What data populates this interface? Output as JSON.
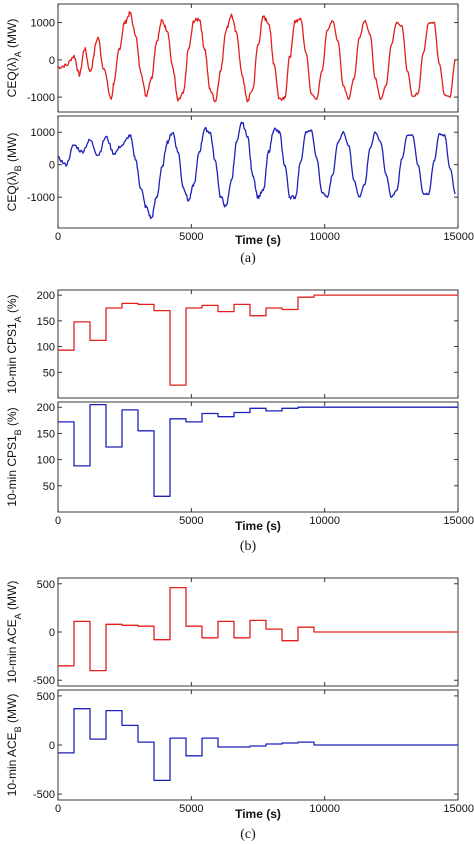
{
  "chart_data": [
    {
      "panel": "(a)",
      "type": "line",
      "xlim": [
        0,
        15000
      ],
      "xticks": [
        0,
        5000,
        10000,
        15000
      ],
      "xlabel": "Time (s)",
      "plots": [
        {
          "ylabel": "CEQ(λ)",
          "ylabel_sub": "A",
          "ylabel_unit": " (MW)",
          "ylim": [
            -1400,
            1500
          ],
          "yticks": [
            -1000,
            0,
            1000
          ],
          "series": [
            {
              "color": "#e0201c",
              "pattern": "noisy oscillation; amplitude grows then settles to a regular sinusoid",
              "x": [
                0,
                300,
                600,
                800,
                1000,
                1200,
                1500,
                1700,
                2000,
                2100,
                2300,
                2500,
                2700,
                2900,
                3100,
                3300,
                3500,
                3700,
                3900,
                4100,
                4300,
                4500,
                4700,
                4900,
                5100,
                5300,
                5500,
                5700,
                5900,
                6100,
                6300,
                6500,
                6700,
                6900,
                7100,
                7300,
                7500,
                7700,
                7900,
                8100,
                8300,
                8500,
                8700,
                8900,
                9100,
                9300,
                9500,
                9700,
                9900,
                10100,
                10300,
                10500,
                10700,
                10900,
                11100,
                11300,
                11500,
                11700,
                11900,
                12100,
                12300,
                12500,
                12700,
                12900,
                13100,
                13300,
                13500,
                13700,
                13900,
                14100,
                14300,
                14500,
                14700,
                14900
              ],
              "y": [
                -200,
                -150,
                100,
                -400,
                300,
                -300,
                600,
                -200,
                -1050,
                -600,
                300,
                1000,
                1250,
                700,
                -300,
                -950,
                -500,
                500,
                1050,
                800,
                -200,
                -1100,
                -900,
                300,
                1050,
                1100,
                300,
                -800,
                -1100,
                -300,
                800,
                1200,
                700,
                -400,
                -1100,
                -800,
                400,
                1150,
                1000,
                -100,
                -1050,
                -1000,
                100,
                1050,
                1100,
                200,
                -900,
                -1050,
                -300,
                800,
                1050,
                500,
                -700,
                -1050,
                -500,
                600,
                1050,
                700,
                -500,
                -1050,
                -700,
                400,
                1000,
                900,
                -300,
                -1000,
                -900,
                200,
                1000,
                1000,
                -100,
                -950,
                -1000,
                0
              ]
            }
          ]
        },
        {
          "ylabel": "CEQ(λ)",
          "ylabel_sub": "B",
          "ylabel_unit": " (MW)",
          "ylim": [
            -1950,
            1500
          ],
          "yticks": [
            -1000,
            0,
            1000
          ],
          "series": [
            {
              "color": "#1c22b8",
              "pattern": "noisy oscillation; deep trough near 3500 s then regular sinusoid",
              "x": [
                0,
                300,
                600,
                900,
                1200,
                1500,
                1800,
                2100,
                2400,
                2700,
                2900,
                3100,
                3300,
                3500,
                3700,
                3900,
                4100,
                4300,
                4500,
                4700,
                4900,
                5100,
                5300,
                5500,
                5700,
                5900,
                6100,
                6300,
                6500,
                6700,
                6900,
                7100,
                7300,
                7500,
                7700,
                7900,
                8100,
                8300,
                8500,
                8700,
                8900,
                9100,
                9300,
                9500,
                9700,
                9900,
                10100,
                10300,
                10500,
                10700,
                10900,
                11100,
                11300,
                11500,
                11700,
                11900,
                12100,
                12300,
                12500,
                12700,
                12900,
                13100,
                13300,
                13500,
                13700,
                13900,
                14100,
                14300,
                14500,
                14700,
                14900
              ],
              "y": [
                200,
                0,
                600,
                400,
                750,
                300,
                850,
                350,
                600,
                900,
                200,
                -700,
                -1300,
                -1650,
                -1000,
                -100,
                700,
                1000,
                400,
                -700,
                -1100,
                -600,
                400,
                1100,
                1000,
                100,
                -1000,
                -1300,
                -500,
                700,
                1300,
                900,
                -300,
                -1000,
                -800,
                400,
                1100,
                1000,
                0,
                -1000,
                -1000,
                100,
                1000,
                1050,
                200,
                -850,
                -1000,
                -300,
                700,
                1000,
                600,
                -500,
                -1000,
                -600,
                500,
                1000,
                700,
                -300,
                -1000,
                -800,
                200,
                900,
                900,
                0,
                -900,
                -900,
                100,
                950,
                900,
                -100,
                -900
              ]
            }
          ]
        }
      ]
    },
    {
      "panel": "(b)",
      "type": "line",
      "step": true,
      "xlim": [
        0,
        15000
      ],
      "xticks": [
        0,
        5000,
        10000,
        15000
      ],
      "xlabel": "Time (s)",
      "plots": [
        {
          "ylabel": "10-min CPS1",
          "ylabel_sub": "A",
          "ylabel_unit": " (%)",
          "ylim": [
            0,
            210
          ],
          "yticks": [
            50,
            100,
            150,
            200
          ],
          "series": [
            {
              "color": "#e0201c",
              "x": [
                0,
                600,
                1200,
                1800,
                2400,
                3000,
                3600,
                4200,
                4800,
                5400,
                6000,
                6600,
                7200,
                7800,
                8400,
                9000,
                9600,
                15000
              ],
              "y": [
                93,
                148,
                112,
                175,
                184,
                182,
                170,
                25,
                175,
                180,
                168,
                182,
                160,
                175,
                172,
                196,
                200,
                200
              ]
            }
          ]
        },
        {
          "ylabel": "10-min CPS1",
          "ylabel_sub": "B",
          "ylabel_unit": " (%)",
          "ylim": [
            0,
            210
          ],
          "yticks": [
            50,
            100,
            150,
            200
          ],
          "series": [
            {
              "color": "#1c22b8",
              "x": [
                0,
                600,
                1200,
                1800,
                2400,
                3000,
                3600,
                4200,
                4800,
                5400,
                6000,
                6600,
                7200,
                7800,
                8400,
                9000,
                9600,
                15000
              ],
              "y": [
                172,
                88,
                205,
                124,
                195,
                155,
                30,
                178,
                172,
                188,
                182,
                190,
                198,
                193,
                198,
                200,
                200,
                200
              ]
            }
          ]
        }
      ]
    },
    {
      "panel": "(c)",
      "type": "line",
      "step": true,
      "xlim": [
        0,
        15000
      ],
      "xticks": [
        0,
        5000,
        10000,
        15000
      ],
      "xlabel": "Time (s)",
      "plots": [
        {
          "ylabel": "10-min ACE",
          "ylabel_sub": "A",
          "ylabel_unit": " (MW)",
          "ylim": [
            -560,
            560
          ],
          "yticks": [
            -500,
            0,
            500
          ],
          "series": [
            {
              "color": "#e0201c",
              "x": [
                0,
                600,
                1200,
                1800,
                2400,
                3000,
                3600,
                4200,
                4800,
                5400,
                6000,
                6600,
                7200,
                7800,
                8400,
                9000,
                9600,
                15000
              ],
              "y": [
                -350,
                110,
                -400,
                80,
                70,
                60,
                -80,
                460,
                60,
                -60,
                110,
                -60,
                120,
                30,
                -90,
                50,
                0,
                0
              ]
            }
          ]
        },
        {
          "ylabel": "10-min ACE",
          "ylabel_sub": "B",
          "ylabel_unit": " (MW)",
          "ylim": [
            -560,
            560
          ],
          "yticks": [
            -500,
            0,
            500
          ],
          "series": [
            {
              "color": "#1c22b8",
              "x": [
                0,
                600,
                1200,
                1800,
                2400,
                3000,
                3600,
                4200,
                4800,
                5400,
                6000,
                6600,
                7200,
                7800,
                8400,
                9000,
                9600,
                15000
              ],
              "y": [
                -80,
                370,
                60,
                350,
                200,
                30,
                -360,
                70,
                -110,
                70,
                -20,
                -20,
                -10,
                10,
                20,
                30,
                0,
                0
              ]
            }
          ]
        }
      ]
    }
  ]
}
